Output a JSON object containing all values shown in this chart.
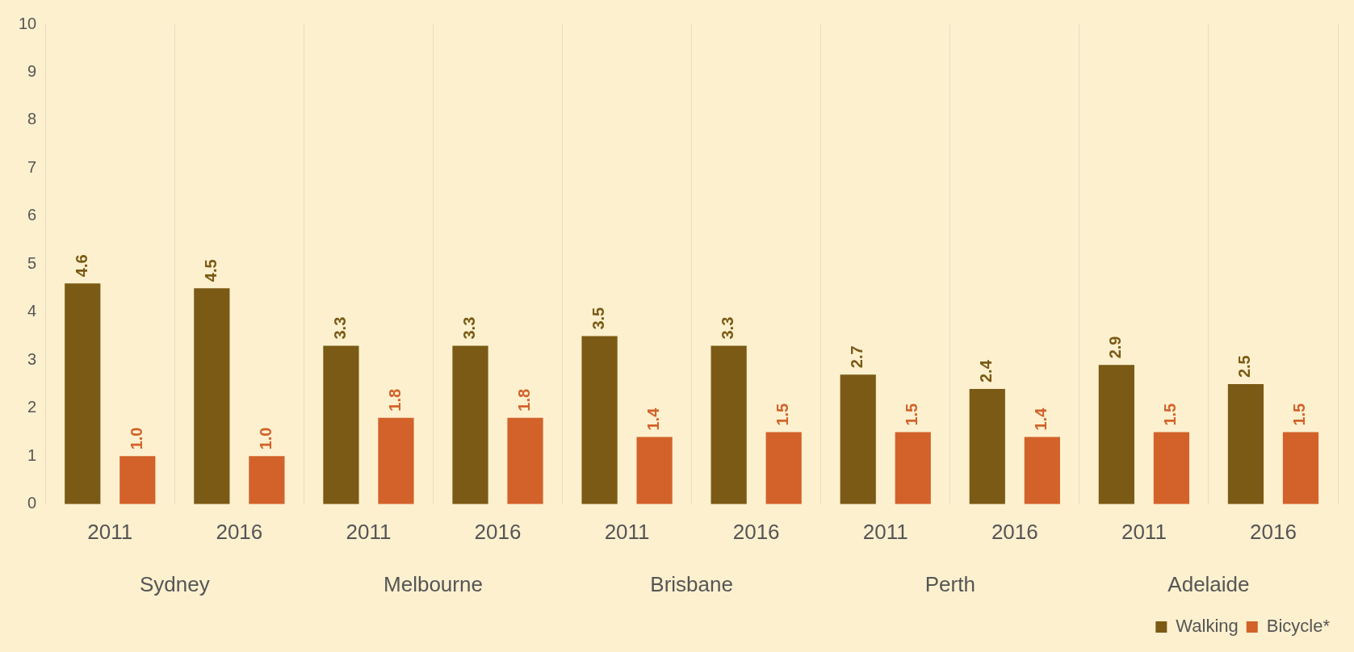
{
  "chart_data": {
    "type": "bar",
    "categories": [
      "2011",
      "2016",
      "2011",
      "2016",
      "2011",
      "2016",
      "2011",
      "2016",
      "2011",
      "2016"
    ],
    "annotations": [
      "Sydney",
      "Melbourne",
      "Brisbane",
      "Perth",
      "Adelaide"
    ],
    "series": [
      {
        "name": "Walking",
        "color": "#7a5a14",
        "values": [
          4.6,
          4.5,
          3.3,
          3.3,
          3.5,
          3.3,
          2.7,
          2.4,
          2.9,
          2.5
        ],
        "value_labels": [
          "4.6",
          "4.5",
          "3.3",
          "3.3",
          "3.5",
          "3.3",
          "2.7",
          "2.4",
          "2.9",
          "2.5"
        ]
      },
      {
        "name": "Bicycle*",
        "color": "#d2622a",
        "values": [
          1.0,
          1.0,
          1.8,
          1.8,
          1.4,
          1.5,
          1.5,
          1.4,
          1.5,
          1.5
        ],
        "value_labels": [
          "1.0",
          "1.0",
          "1.8",
          "1.8",
          "1.4",
          "1.5",
          "1.5",
          "1.4",
          "1.5",
          "1.5"
        ]
      }
    ],
    "ylim": [
      0,
      10
    ],
    "yticks": [
      0,
      1,
      2,
      3,
      4,
      5,
      6,
      7,
      8,
      9,
      10
    ],
    "grid": "x",
    "legend": "bottom right"
  }
}
